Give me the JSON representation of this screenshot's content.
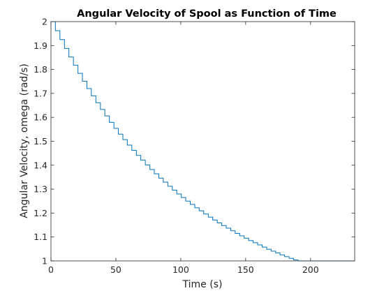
{
  "chart_data": {
    "type": "line",
    "style": "stairs",
    "title": "Angular Velocity of Spool as Function of Time",
    "xlabel": "Time (s)",
    "ylabel": "Angular Velocity, omega (rad/s)",
    "xlim": [
      0,
      234
    ],
    "ylim": [
      1,
      2
    ],
    "xticks": [
      0,
      50,
      100,
      150,
      200
    ],
    "yticks": [
      1,
      1.1,
      1.2,
      1.3,
      1.4,
      1.5,
      1.6,
      1.7,
      1.8,
      1.9,
      2
    ],
    "xtick_labels": [
      "0",
      "50",
      "100",
      "150",
      "200"
    ],
    "ytick_labels": [
      "1",
      "1.1",
      "1.2",
      "1.3",
      "1.4",
      "1.5",
      "1.6",
      "1.7",
      "1.8",
      "1.9",
      "2"
    ],
    "grid": false,
    "line_color": "#0072BD",
    "series": [
      {
        "x": [
          0,
          3.4,
          6.9,
          10.4,
          13.8,
          17.3,
          20.8,
          24.2,
          27.7,
          31.1,
          34.6,
          38.1,
          41.5,
          45,
          48.5,
          51.9,
          55.4,
          58.8,
          62.3,
          65.8,
          69.2,
          72.7,
          76.2,
          79.6,
          83.1,
          86.5,
          90,
          93.5,
          96.9,
          100.4,
          103.8,
          107.3,
          110.8,
          114.2,
          117.7,
          121.2,
          124.6,
          128.1,
          131.5,
          135,
          138.5,
          141.9,
          145.4,
          148.8,
          152.3,
          155.8,
          159.2,
          162.7,
          166.2,
          169.6,
          173.1,
          176.5,
          180,
          183.5,
          186.9,
          190.4,
          193.8,
          197.3,
          200.8,
          204.2,
          207.7,
          211.2,
          214.6,
          218.1,
          221.5,
          225,
          228.5,
          231.9
        ],
        "y": [
          2,
          1.962,
          1.925,
          1.888,
          1.852,
          1.818,
          1.784,
          1.751,
          1.72,
          1.69,
          1.661,
          1.633,
          1.606,
          1.579,
          1.554,
          1.53,
          1.507,
          1.484,
          1.462,
          1.441,
          1.421,
          1.401,
          1.382,
          1.364,
          1.346,
          1.329,
          1.312,
          1.296,
          1.28,
          1.265,
          1.25,
          1.236,
          1.222,
          1.209,
          1.196,
          1.183,
          1.171,
          1.159,
          1.148,
          1.137,
          1.126,
          1.115,
          1.105,
          1.095,
          1.085,
          1.076,
          1.067,
          1.058,
          1.049,
          1.041,
          1.033,
          1.025,
          1.018,
          1.011,
          1.004,
          1.0,
          1.0,
          1.0,
          1.0,
          1.0,
          1.0,
          1.0,
          1.0,
          1.0,
          1.0,
          1.0,
          1.0,
          1.0
        ]
      }
    ]
  }
}
